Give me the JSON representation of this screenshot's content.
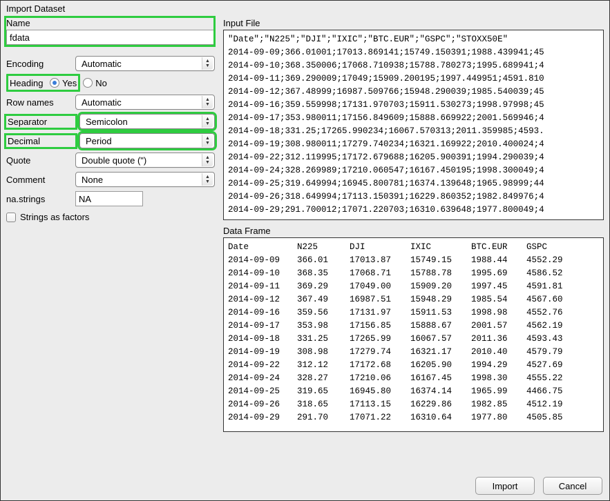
{
  "dialog": {
    "title": "Import Dataset"
  },
  "form": {
    "name_label": "Name",
    "name_value": "fdata",
    "encoding_label": "Encoding",
    "encoding_value": "Automatic",
    "heading_label": "Heading",
    "heading_yes": "Yes",
    "heading_no": "No",
    "heading_selected": "yes",
    "rownames_label": "Row names",
    "rownames_value": "Automatic",
    "separator_label": "Separator",
    "separator_value": "Semicolon",
    "decimal_label": "Decimal",
    "decimal_value": "Period",
    "quote_label": "Quote",
    "quote_value": "Double quote (\")",
    "comment_label": "Comment",
    "comment_value": "None",
    "nastrings_label": "na.strings",
    "nastrings_value": "NA",
    "strings_as_factors_label": "Strings as factors",
    "strings_as_factors_checked": false
  },
  "sections": {
    "input_file_label": "Input File",
    "data_frame_label": "Data Frame"
  },
  "input_file_lines": [
    "\"Date\";\"N225\";\"DJI\";\"IXIC\";\"BTC.EUR\";\"GSPC\";\"STOXX50E\"",
    "2014-09-09;366.01001;17013.869141;15749.150391;1988.439941;45",
    "2014-09-10;368.350006;17068.710938;15788.780273;1995.689941;4",
    "2014-09-11;369.290009;17049;15909.200195;1997.449951;4591.810",
    "2014-09-12;367.48999;16987.509766;15948.290039;1985.540039;45",
    "2014-09-16;359.559998;17131.970703;15911.530273;1998.97998;45",
    "2014-09-17;353.980011;17156.849609;15888.669922;2001.569946;4",
    "2014-09-18;331.25;17265.990234;16067.570313;2011.359985;4593.",
    "2014-09-19;308.980011;17279.740234;16321.169922;2010.400024;4",
    "2014-09-22;312.119995;17172.679688;16205.900391;1994.290039;4",
    "2014-09-24;328.269989;17210.060547;16167.450195;1998.300049;4",
    "2014-09-25;319.649994;16945.800781;16374.139648;1965.98999;44",
    "2014-09-26;318.649994;17113.150391;16229.860352;1982.849976;4",
    "2014-09-29;291.700012;17071.220703;16310.639648;1977.800049;4"
  ],
  "dataframe": {
    "columns": [
      "Date",
      "N225",
      "DJI",
      "IXIC",
      "BTC.EUR",
      "GSPC"
    ],
    "rows": [
      [
        "2014-09-09",
        "366.01",
        "17013.87",
        "15749.15",
        "1988.44",
        "4552.29"
      ],
      [
        "2014-09-10",
        "368.35",
        "17068.71",
        "15788.78",
        "1995.69",
        "4586.52"
      ],
      [
        "2014-09-11",
        "369.29",
        "17049.00",
        "15909.20",
        "1997.45",
        "4591.81"
      ],
      [
        "2014-09-12",
        "367.49",
        "16987.51",
        "15948.29",
        "1985.54",
        "4567.60"
      ],
      [
        "2014-09-16",
        "359.56",
        "17131.97",
        "15911.53",
        "1998.98",
        "4552.76"
      ],
      [
        "2014-09-17",
        "353.98",
        "17156.85",
        "15888.67",
        "2001.57",
        "4562.19"
      ],
      [
        "2014-09-18",
        "331.25",
        "17265.99",
        "16067.57",
        "2011.36",
        "4593.43"
      ],
      [
        "2014-09-19",
        "308.98",
        "17279.74",
        "16321.17",
        "2010.40",
        "4579.79"
      ],
      [
        "2014-09-22",
        "312.12",
        "17172.68",
        "16205.90",
        "1994.29",
        "4527.69"
      ],
      [
        "2014-09-24",
        "328.27",
        "17210.06",
        "16167.45",
        "1998.30",
        "4555.22"
      ],
      [
        "2014-09-25",
        "319.65",
        "16945.80",
        "16374.14",
        "1965.99",
        "4466.75"
      ],
      [
        "2014-09-26",
        "318.65",
        "17113.15",
        "16229.86",
        "1982.85",
        "4512.19"
      ],
      [
        "2014-09-29",
        "291.70",
        "17071.22",
        "16310.64",
        "1977.80",
        "4505.85"
      ]
    ]
  },
  "buttons": {
    "import": "Import",
    "cancel": "Cancel"
  },
  "colors": {
    "dialog_bg": "#ececec",
    "highlight": "#2ecc40",
    "border": "#333333",
    "input_bg": "#ffffff"
  }
}
